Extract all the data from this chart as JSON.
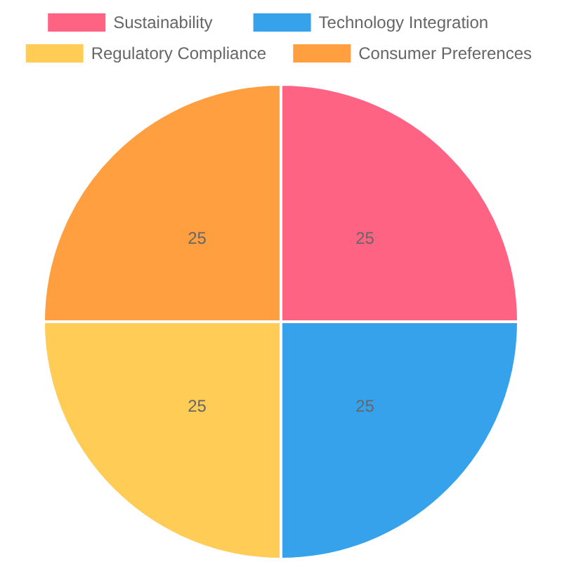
{
  "chart_data": {
    "type": "pie",
    "categories": [
      "Sustainability",
      "Technology Integration",
      "Regulatory Compliance",
      "Consumer Preferences"
    ],
    "values": [
      25,
      25,
      25,
      25
    ],
    "colors": [
      "#ff6384",
      "#36a2eb",
      "#ffcd56",
      "#ff9f40"
    ],
    "legend": "top",
    "data_labels": true
  }
}
